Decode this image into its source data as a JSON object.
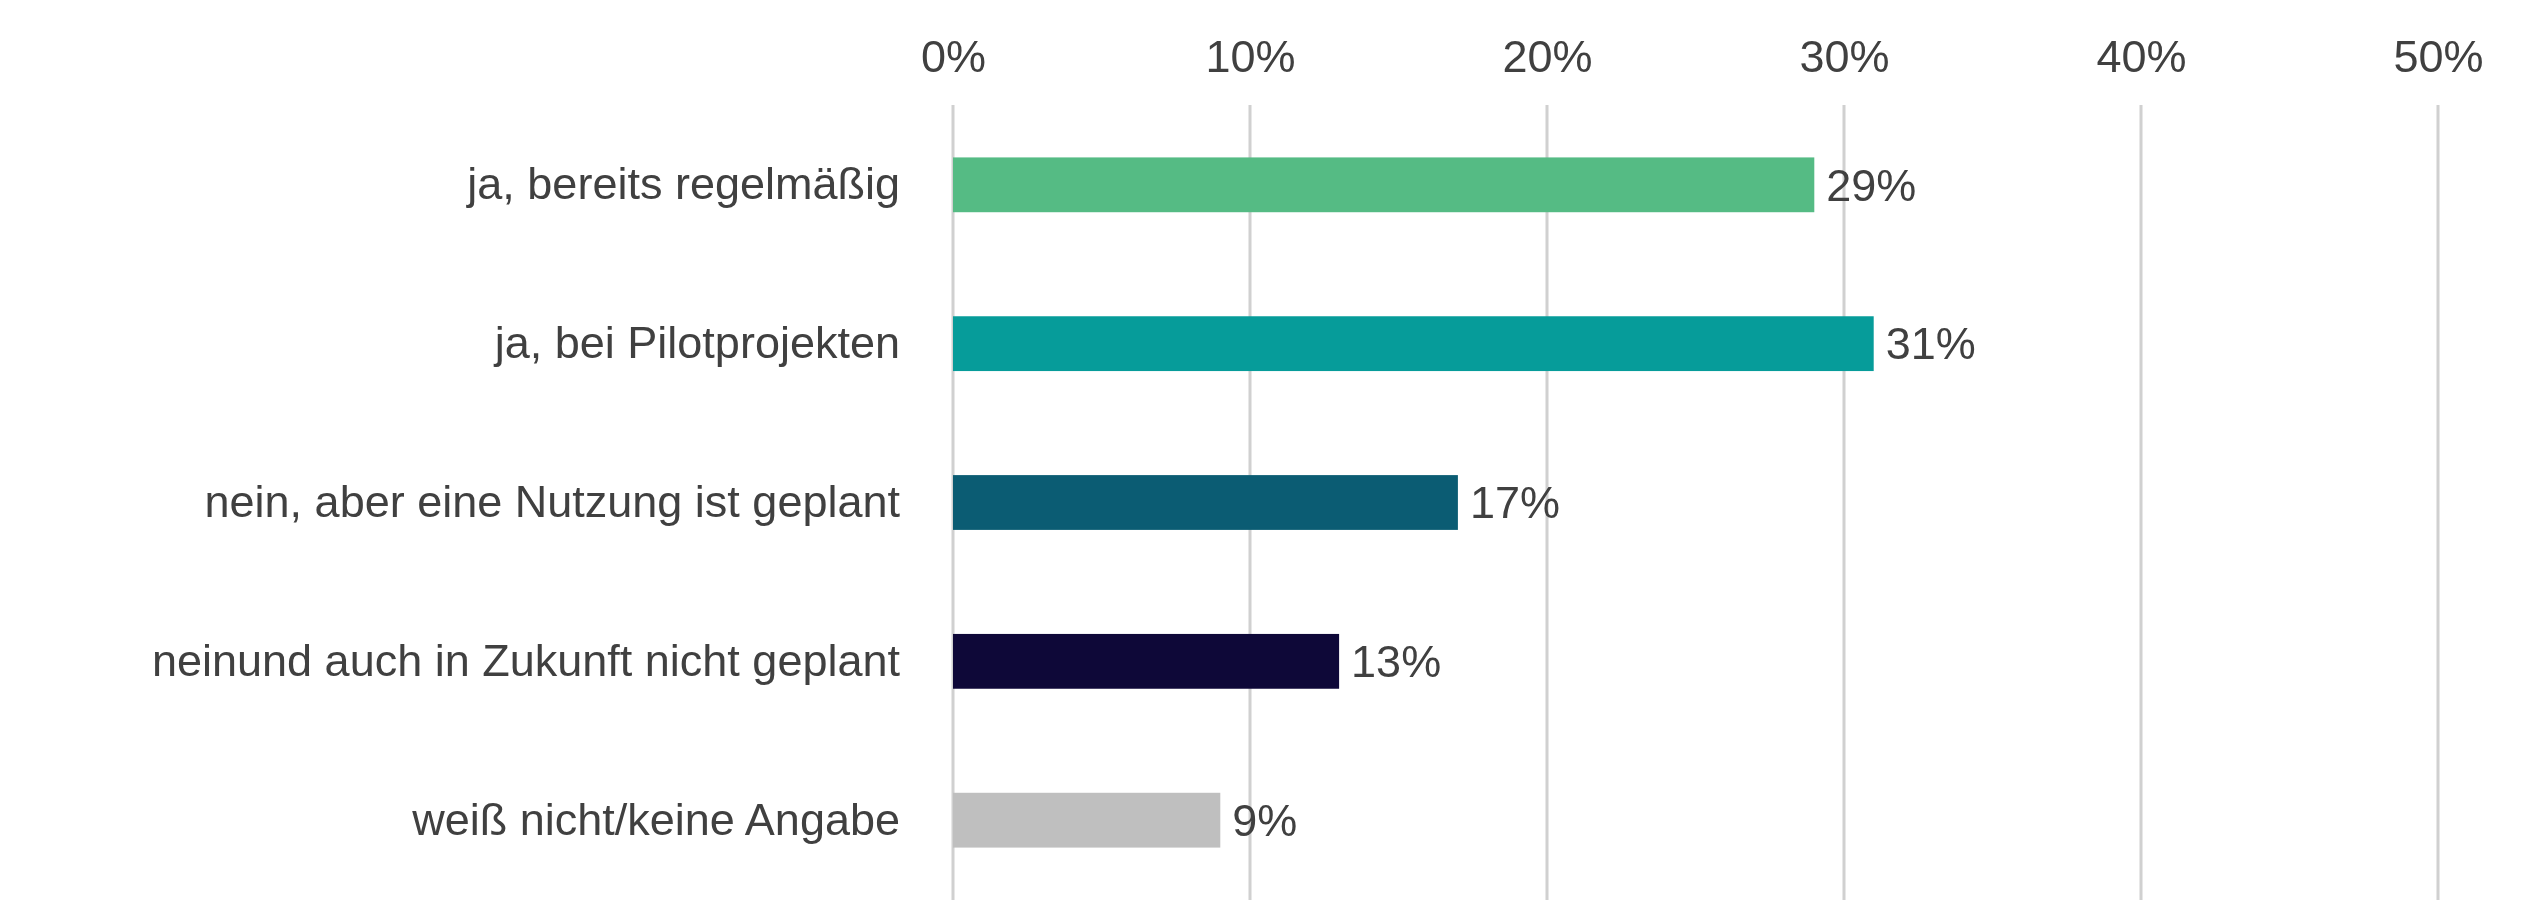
{
  "chart_data": {
    "type": "bar",
    "orientation": "horizontal",
    "categories": [
      "ja, bereits regelmäßig",
      "ja, bei Pilotprojekten",
      "nein, aber eine Nutzung ist geplant",
      "neinund auch in Zukunft nicht geplant",
      "weiß nicht/keine Angabe"
    ],
    "values": [
      29,
      31,
      17,
      13,
      9
    ],
    "colors": [
      "#55bb84",
      "#069c9a",
      "#0b5c73",
      "#0e0838",
      "#bfbfbf"
    ],
    "value_labels": [
      "29%",
      "31%",
      "17%",
      "13%",
      "9%"
    ],
    "xlim": [
      0,
      50
    ],
    "xticks": [
      {
        "value": 0,
        "label": "0%"
      },
      {
        "value": 10,
        "label": "10%"
      },
      {
        "value": 20,
        "label": "20%"
      },
      {
        "value": 30,
        "label": "30%"
      },
      {
        "value": 40,
        "label": "40%"
      },
      {
        "value": 50,
        "label": "50%"
      }
    ],
    "grid": "x"
  }
}
